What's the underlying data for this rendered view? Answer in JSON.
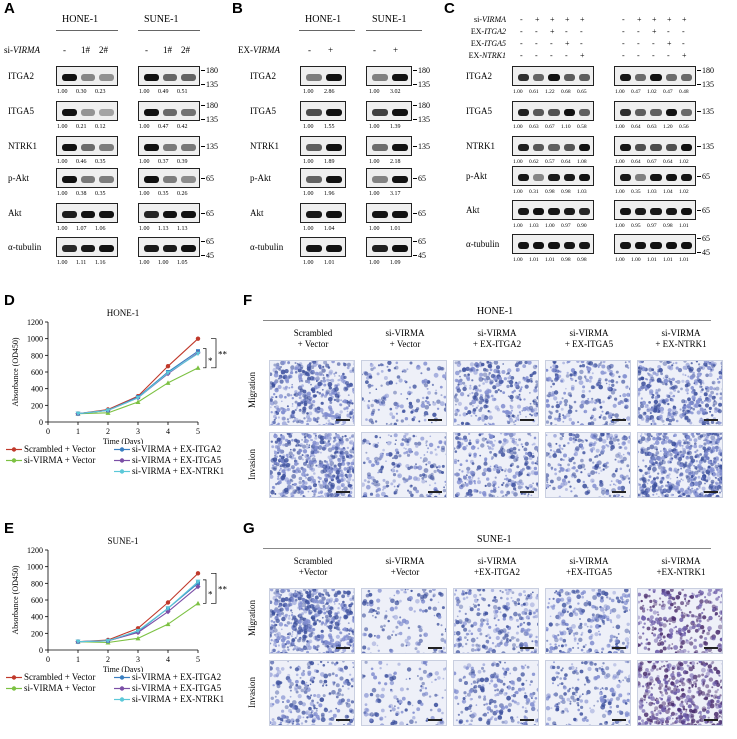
{
  "panels": {
    "A": {
      "letter": "A",
      "cell_lines": [
        "HONE-1",
        "SUNE-1"
      ],
      "treatment_prefix": "si-",
      "treatment_gene": "VIRMA",
      "lanes": [
        "-",
        "1#",
        "2#"
      ],
      "rows": [
        {
          "name": "ITGA2",
          "mw": [
            "180",
            "135"
          ],
          "values": [
            [
              "1.00",
              "0.30",
              "0.23"
            ],
            [
              "1.00",
              "0.49",
              "0.51"
            ]
          ]
        },
        {
          "name": "ITGA5",
          "mw": [
            "180",
            "135"
          ],
          "values": [
            [
              "1.00",
              "0.21",
              "0.12"
            ],
            [
              "1.00",
              "0.47",
              "0.42"
            ]
          ]
        },
        {
          "name": "NTRK1",
          "mw": [
            "135"
          ],
          "values": [
            [
              "1.00",
              "0.46",
              "0.35"
            ],
            [
              "1.00",
              "0.37",
              "0.39"
            ]
          ]
        },
        {
          "name": "p-Akt",
          "mw": [
            "65"
          ],
          "values": [
            [
              "1.00",
              "0.38",
              "0.35"
            ],
            [
              "1.00",
              "0.35",
              "0.26"
            ]
          ]
        },
        {
          "name": "Akt",
          "mw": [
            "65"
          ],
          "values": [
            [
              "1.00",
              "1.07",
              "1.06"
            ],
            [
              "1.00",
              "1.13",
              "1.13"
            ]
          ]
        },
        {
          "name": "α-tubulin",
          "mw": [
            "65",
            "45"
          ],
          "values": [
            [
              "1.00",
              "1.11",
              "1.16"
            ],
            [
              "1.00",
              "1.00",
              "1.05"
            ]
          ]
        }
      ]
    },
    "B": {
      "letter": "B",
      "cell_lines": [
        "HONE-1",
        "SUNE-1"
      ],
      "treatment_prefix": "EX-",
      "treatment_gene": "VIRMA",
      "lanes": [
        "-",
        "+"
      ],
      "rows": [
        {
          "name": "ITGA2",
          "mw": [
            "180",
            "135"
          ],
          "values": [
            [
              "1.00",
              "2.86"
            ],
            [
              "1.00",
              "3.02"
            ]
          ]
        },
        {
          "name": "ITGA5",
          "mw": [
            "180",
            "135"
          ],
          "values": [
            [
              "1.00",
              "1.55"
            ],
            [
              "1.00",
              "1.39"
            ]
          ]
        },
        {
          "name": "NTRK1",
          "mw": [
            "135"
          ],
          "values": [
            [
              "1.00",
              "1.89"
            ],
            [
              "1.00",
              "2.18"
            ]
          ]
        },
        {
          "name": "p-Akt",
          "mw": [
            "65"
          ],
          "values": [
            [
              "1.00",
              "1.96"
            ],
            [
              "1.00",
              "3.17"
            ]
          ]
        },
        {
          "name": "Akt",
          "mw": [
            "65"
          ],
          "values": [
            [
              "1.00",
              "1.04"
            ],
            [
              "1.00",
              "1.01"
            ]
          ]
        },
        {
          "name": "α-tubulin",
          "mw": [
            "65",
            "45"
          ],
          "values": [
            [
              "1.00",
              "1.01"
            ],
            [
              "1.00",
              "1.09"
            ]
          ]
        }
      ]
    },
    "C": {
      "letter": "C",
      "conditions": [
        {
          "prefix": "si-",
          "gene": "VIRMA",
          "signs": [
            "-",
            "+",
            "+",
            "+",
            "+"
          ]
        },
        {
          "prefix": "EX-",
          "gene": "ITGA2",
          "signs": [
            "-",
            "-",
            "+",
            "-",
            "-"
          ]
        },
        {
          "prefix": "EX-",
          "gene": "ITGA5",
          "signs": [
            "-",
            "-",
            "-",
            "+",
            "-"
          ]
        },
        {
          "prefix": "EX-",
          "gene": "NTRK1",
          "signs": [
            "-",
            "-",
            "-",
            "-",
            "+"
          ]
        }
      ],
      "rows": [
        {
          "name": "ITGA2",
          "mw": [
            "180",
            "135"
          ],
          "values": [
            [
              "1.00",
              "0.61",
              "1.22",
              "0.68",
              "0.65"
            ],
            [
              "1.00",
              "0.47",
              "1.02",
              "0.47",
              "0.48"
            ]
          ]
        },
        {
          "name": "ITGA5",
          "mw": [
            "135"
          ],
          "values": [
            [
              "1.00",
              "0.63",
              "0.67",
              "1.10",
              "0.58"
            ],
            [
              "1.00",
              "0.64",
              "0.63",
              "1.20",
              "0.56"
            ]
          ]
        },
        {
          "name": "NTRK1",
          "mw": [
            "135"
          ],
          "values": [
            [
              "1.00",
              "0.62",
              "0.57",
              "0.64",
              "1.08"
            ],
            [
              "1.00",
              "0.64",
              "0.67",
              "0.64",
              "1.02"
            ]
          ]
        },
        {
          "name": "p-Akt",
          "mw": [
            "65"
          ],
          "values": [
            [
              "1.00",
              "0.31",
              "0.98",
              "0.98",
              "1.03"
            ],
            [
              "1.00",
              "0.35",
              "1.03",
              "1.04",
              "1.02"
            ]
          ]
        },
        {
          "name": "Akt",
          "mw": [
            "65"
          ],
          "values": [
            [
              "1.00",
              "1.03",
              "1.00",
              "0.97",
              "0.90"
            ],
            [
              "1.00",
              "0.95",
              "0.97",
              "0.98",
              "1.01"
            ]
          ]
        },
        {
          "name": "α-tubulin",
          "mw": [
            "65",
            "45"
          ],
          "values": [
            [
              "1.00",
              "1.01",
              "1.01",
              "0.98",
              "0.98"
            ],
            [
              "1.00",
              "1.00",
              "1.01",
              "1.01",
              "1.01"
            ]
          ]
        }
      ]
    },
    "D": {
      "letter": "D",
      "title": "HONE-1"
    },
    "E": {
      "letter": "E",
      "title": "SUNE-1"
    },
    "F": {
      "letter": "F",
      "title": "HONE-1",
      "columns": [
        {
          "l1": "Scrambled",
          "l2": "+ Vector"
        },
        {
          "l1": "si-VIRMA",
          "l2": "+ Vector"
        },
        {
          "l1": "si-VIRMA",
          "l2": "+ EX-ITGA2"
        },
        {
          "l1": "si-VIRMA",
          "l2": "+ EX-ITGA5"
        },
        {
          "l1": "si-VIRMA",
          "l2": "+ EX-NTRK1"
        }
      ],
      "rows": [
        "Migration",
        "Invasion"
      ]
    },
    "G": {
      "letter": "G",
      "title": "SUNE-1",
      "columns": [
        {
          "l1": "Scrambled",
          "l2": "+Vector"
        },
        {
          "l1": "si-VIRMA",
          "l2": "+Vector"
        },
        {
          "l1": "si-VIRMA",
          "l2": "+EX-ITGA2"
        },
        {
          "l1": "si-VIRMA",
          "l2": "+EX-ITGA5"
        },
        {
          "l1": "si-VIRMA",
          "l2": "+EX-NTRK1"
        }
      ],
      "rows": [
        "Migration",
        "Invasion"
      ]
    }
  },
  "chart_data": [
    {
      "type": "line",
      "title": "HONE-1",
      "xlabel": "Time (Days)",
      "ylabel": "Absorbance (OD450)",
      "xlim": [
        0,
        5
      ],
      "ylim": [
        0,
        1200
      ],
      "xticks": [
        "0",
        "1",
        "2",
        "3",
        "4",
        "5"
      ],
      "yticks": [
        "0",
        "200",
        "400",
        "600",
        "800",
        "1000",
        "1200"
      ],
      "x": [
        1,
        2,
        3,
        4,
        5
      ],
      "series": [
        {
          "name": "Scrambled + Vector",
          "color": "#c0392b",
          "marker": "circle",
          "values": [
            100,
            150,
            310,
            670,
            1000
          ]
        },
        {
          "name": "si-VIRMA + Vector",
          "color": "#7cc142",
          "marker": "triangle",
          "values": [
            100,
            110,
            240,
            470,
            650
          ]
        },
        {
          "name": "si-VIRMA + EX-ITGA2",
          "color": "#3a7fc1",
          "marker": "square",
          "values": [
            100,
            140,
            300,
            600,
            850
          ]
        },
        {
          "name": "si-VIRMA + EX-ITGA5",
          "color": "#7b4fa6",
          "marker": "diamond",
          "values": [
            100,
            140,
            290,
            580,
            830
          ]
        },
        {
          "name": "si-VIRMA + EX-NTRK1",
          "color": "#5bc8d8",
          "marker": "tri-down",
          "values": [
            100,
            140,
            290,
            590,
            820
          ]
        }
      ],
      "significance": [
        "*",
        "**"
      ]
    },
    {
      "type": "line",
      "title": "SUNE-1",
      "xlabel": "Time (Days)",
      "ylabel": "Absorbance (OD450)",
      "xlim": [
        0,
        5
      ],
      "ylim": [
        0,
        1200
      ],
      "xticks": [
        "0",
        "1",
        "2",
        "3",
        "4",
        "5"
      ],
      "yticks": [
        "0",
        "200",
        "400",
        "600",
        "800",
        "1000",
        "1200"
      ],
      "x": [
        1,
        2,
        3,
        4,
        5
      ],
      "series": [
        {
          "name": "Scrambled + Vector",
          "color": "#c0392b",
          "marker": "circle",
          "values": [
            100,
            120,
            260,
            570,
            920
          ]
        },
        {
          "name": "si-VIRMA + Vector",
          "color": "#7cc142",
          "marker": "triangle",
          "values": [
            100,
            90,
            140,
            310,
            560
          ]
        },
        {
          "name": "si-VIRMA + EX-ITGA2",
          "color": "#3a7fc1",
          "marker": "square",
          "values": [
            100,
            110,
            220,
            500,
            800
          ]
        },
        {
          "name": "si-VIRMA + EX-ITGA5",
          "color": "#7b4fa6",
          "marker": "diamond",
          "values": [
            100,
            110,
            210,
            460,
            760
          ]
        },
        {
          "name": "si-VIRMA + EX-NTRK1",
          "color": "#5bc8d8",
          "marker": "tri-down",
          "values": [
            100,
            110,
            230,
            500,
            820
          ]
        }
      ],
      "significance": [
        "*",
        "**"
      ]
    }
  ]
}
